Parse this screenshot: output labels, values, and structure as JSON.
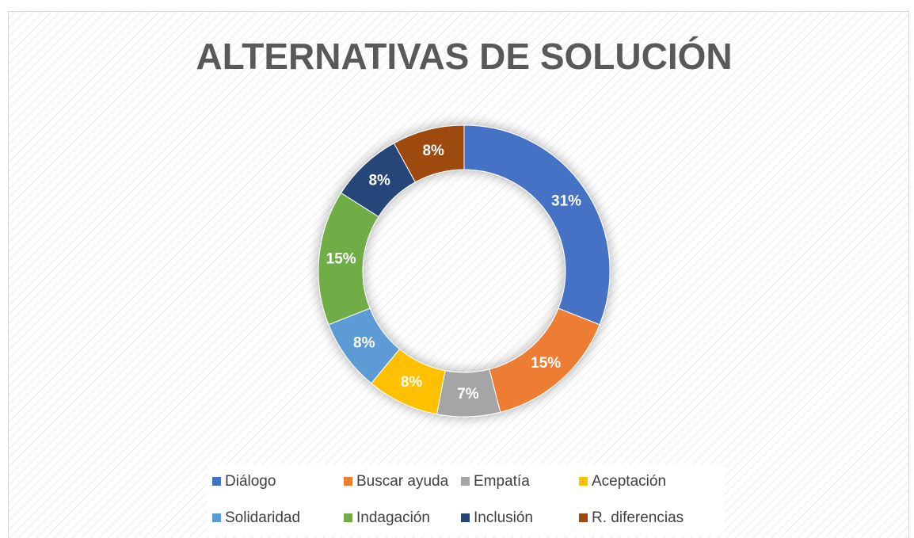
{
  "chart_data": {
    "type": "pie",
    "title": "ALTERNATIVAS DE SOLUCIÓN",
    "categories": [
      "Diálogo",
      "Buscar ayuda",
      "Empatía",
      "Aceptación",
      "Solidaridad",
      "Indagación",
      "Inclusión",
      "R. diferencias"
    ],
    "values": [
      31,
      15,
      7,
      8,
      8,
      15,
      8,
      8
    ],
    "value_labels": [
      "31%",
      "15%",
      "7%",
      "8%",
      "8%",
      "15%",
      "8%",
      "8%"
    ],
    "colors": [
      "#4472c4",
      "#ed7d31",
      "#a5a5a5",
      "#ffc000",
      "#5b9bd5",
      "#70ad47",
      "#264478",
      "#9e480e"
    ],
    "donut": true,
    "legend": "bottom"
  }
}
